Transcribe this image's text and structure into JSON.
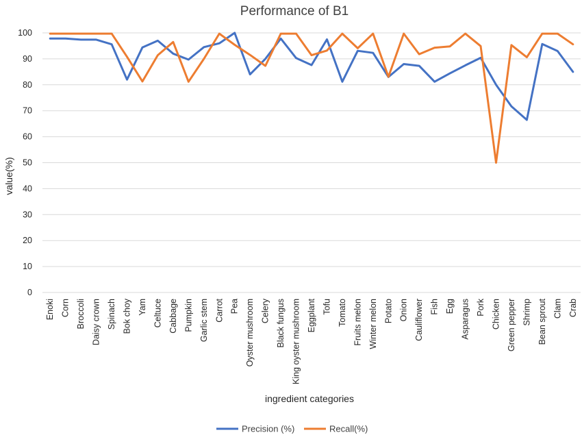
{
  "chart_data": {
    "type": "line",
    "title": "Performance of B1",
    "xlabel": "ingredient categories",
    "ylabel": "value(%)",
    "ylim": [
      0,
      100
    ],
    "yticks": [
      0,
      10,
      20,
      30,
      40,
      50,
      60,
      70,
      80,
      90,
      100
    ],
    "grid": "horizontal",
    "legend_position": "bottom",
    "categories": [
      "Enoki",
      "Corn",
      "Broccoli",
      "Daisy crown",
      "Spinach",
      "Bok choy",
      "Yam",
      "Celtuce",
      "Cabbage",
      "Pumpkin",
      "Garlic stem",
      "Carrot",
      "Pea",
      "Oyster mushroom",
      "Celery",
      "Black fungus",
      "King oyster mushroom",
      "Eggplant",
      "Tofu",
      "Tomato",
      "Fruits melon",
      "Winter melon",
      "Potato",
      "Onion",
      "Cauliflower",
      "Fish",
      "Egg",
      "Asparagus",
      "Pork",
      "Chicken",
      "Green pepper",
      "Shrimp",
      "Bean sprout",
      "Clam",
      "Crab"
    ],
    "series": [
      {
        "name": "Precision (%)",
        "color": "#4472C4",
        "values": [
          97.8,
          97.8,
          97.4,
          97.4,
          95.6,
          82,
          94.4,
          97,
          92,
          89.7,
          94.5,
          96,
          100,
          84,
          90,
          97.8,
          90.3,
          87.6,
          97.5,
          81.2,
          93.1,
          92.3,
          83,
          88,
          87.3,
          81.2,
          84.4,
          87.5,
          90.4,
          80,
          71.7,
          66.5,
          95.7,
          93,
          85
        ]
      },
      {
        "name": "Recall(%)",
        "color": "#ED7D31",
        "values": [
          99.7,
          99.7,
          99.7,
          99.7,
          99.7,
          90.8,
          81.3,
          91.4,
          96.5,
          81.2,
          90,
          99.7,
          95.4,
          91.5,
          87.3,
          99.7,
          99.7,
          91.4,
          93.2,
          99.7,
          94.1,
          99.7,
          83.1,
          99.7,
          91.8,
          94.3,
          94.8,
          99.7,
          94.9,
          50,
          95.3,
          90.6,
          99.7,
          99.7,
          95.6
        ]
      }
    ]
  }
}
